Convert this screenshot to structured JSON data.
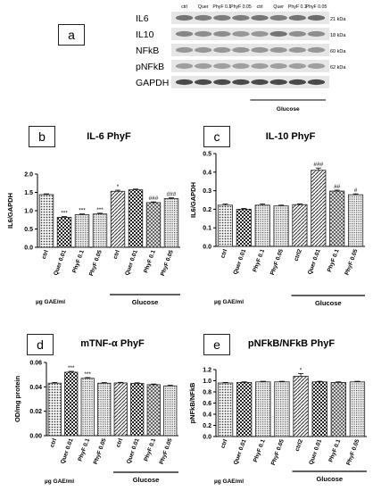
{
  "blot": {
    "panel_letter": "a",
    "lane_labels": [
      "ctrl",
      "Quer",
      "PhyF 0.1",
      "PhyF 0.05",
      "ctrl",
      "Quer",
      "PhyF 0.1",
      "PhyF 0.05"
    ],
    "rows": [
      {
        "name": "IL6",
        "kda": "21 kDa"
      },
      {
        "name": "IL10",
        "kda": "18 kDa"
      },
      {
        "name": "NFkB",
        "kda": "60 kDa"
      },
      {
        "name": "pNFkB",
        "kda": "62 kDa"
      },
      {
        "name": "GAPDH",
        "kda": ""
      }
    ],
    "group_label": "Glucose",
    "band_colors": {
      "dark": "#3a3a3a",
      "medium": "#8a8a8a",
      "light": "#c8c8c8",
      "background": "#e6e6e6"
    }
  },
  "colors": {
    "bar_fill": "#e9e9e9",
    "bar_stroke": "#222222",
    "axis": "#000000"
  },
  "chart_data": [
    {
      "panel": "b",
      "type": "bar",
      "title": "IL-6 PhyF",
      "ylabel": "IL6/GAPDH",
      "categories": [
        "ctrl",
        "Quer 0.01",
        "PhyF 0.1",
        "PhyF 0.05",
        "ctrl",
        "Quer 0.01",
        "PhyF 0.1",
        "PhyF 0.05"
      ],
      "values": [
        1.44,
        0.82,
        0.89,
        0.91,
        1.53,
        1.57,
        1.22,
        1.33
      ],
      "errors": [
        0.02,
        0.02,
        0.02,
        0.02,
        0.03,
        0.02,
        0.02,
        0.02
      ],
      "annotations": [
        "",
        "***",
        "***",
        "***",
        "*",
        "",
        "###",
        "###"
      ],
      "patterns": [
        "dots",
        "checker",
        "fine",
        "fine",
        "diag",
        "checker",
        "cross",
        "fine"
      ],
      "ylim": [
        0,
        2.0
      ],
      "yticks": [
        "0.0",
        "0.5",
        "1.0",
        "1.5",
        "2.0"
      ],
      "ytick_values": [
        0,
        0.5,
        1,
        1.5,
        2
      ],
      "unit_label": "µg GAE/ml",
      "group_label": "Glucose"
    },
    {
      "panel": "c",
      "type": "bar",
      "title": "IL-10 PhyF",
      "ylabel": "IL6/GAPDH",
      "categories": [
        "ctrl",
        "Quer 0.01",
        "PhyF 0.1",
        "PhyF 0.05",
        "ctrl2",
        "Quer 0.01",
        "PhyF 0.1",
        "PhyF 0.05"
      ],
      "values": [
        0.222,
        0.2,
        0.222,
        0.218,
        0.225,
        0.41,
        0.298,
        0.278
      ],
      "errors": [
        0.006,
        0.004,
        0.006,
        0.004,
        0.004,
        0.012,
        0.005,
        0.005
      ],
      "annotations": [
        "",
        "",
        "",
        "",
        "",
        "###",
        "##",
        "#"
      ],
      "patterns": [
        "dots",
        "checker",
        "fine",
        "fine",
        "diag",
        "diag",
        "cross",
        "fine"
      ],
      "ylim": [
        0,
        0.5
      ],
      "yticks": [
        "0.0",
        "0.1",
        "0.2",
        "0.3",
        "0.4",
        "0.5"
      ],
      "ytick_values": [
        0,
        0.1,
        0.2,
        0.3,
        0.4,
        0.5
      ],
      "unit_label": "µg GAE/ml",
      "group_label": "Glucose"
    },
    {
      "panel": "d",
      "type": "bar",
      "title": "mTNF-α PhyF",
      "ylabel": "OD/mg protein",
      "categories": [
        "ctrl",
        "Quer 0.01",
        "PhyF 0.1",
        "PhyF 0.05",
        "ctrl",
        "Quer 0.01",
        "PhyF 0.1",
        "PhyF 0.05"
      ],
      "values": [
        0.043,
        0.052,
        0.047,
        0.043,
        0.0432,
        0.0428,
        0.0418,
        0.0408
      ],
      "errors": [
        0.0006,
        0.0007,
        0.0006,
        0.0005,
        0.0005,
        0.0005,
        0.0005,
        0.0005
      ],
      "annotations": [
        "",
        "***",
        "***",
        "",
        "",
        "",
        "",
        ""
      ],
      "patterns": [
        "dots",
        "checker",
        "fine",
        "fine",
        "diag",
        "checker",
        "cross",
        "fine"
      ],
      "ylim": [
        0,
        0.06
      ],
      "yticks": [
        "0.00",
        "0.02",
        "0.04",
        "0.06"
      ],
      "ytick_values": [
        0,
        0.02,
        0.04,
        0.06
      ],
      "unit_label": "µg GAE/ml",
      "group_label": "Glucose"
    },
    {
      "panel": "e",
      "type": "bar",
      "title": "pNFkB/NFkB PhyF",
      "ylabel": "pNFkB/NFkB",
      "categories": [
        "ctrl",
        "Quer 0.01",
        "PhyF 0.1",
        "PhyF 0.05",
        "ctrl2",
        "Quer 0.01",
        "PhyF 0.1",
        "PhyF 0.05"
      ],
      "values": [
        0.96,
        0.97,
        0.98,
        0.98,
        1.08,
        0.98,
        0.97,
        0.98
      ],
      "errors": [
        0.01,
        0.01,
        0.01,
        0.01,
        0.05,
        0.01,
        0.01,
        0.01
      ],
      "annotations": [
        "",
        "",
        "",
        "",
        "*",
        "",
        "",
        ""
      ],
      "patterns": [
        "dots",
        "checker",
        "fine",
        "fine",
        "diag",
        "checker",
        "cross",
        "fine"
      ],
      "ylim": [
        0,
        1.2
      ],
      "yticks": [
        "0.0",
        "0.2",
        "0.4",
        "0.6",
        "0.8",
        "1.0",
        "1.2"
      ],
      "ytick_values": [
        0,
        0.2,
        0.4,
        0.6,
        0.8,
        1.0,
        1.2
      ],
      "unit_label": "µg GAE/ml",
      "group_label": "Glucose"
    }
  ]
}
